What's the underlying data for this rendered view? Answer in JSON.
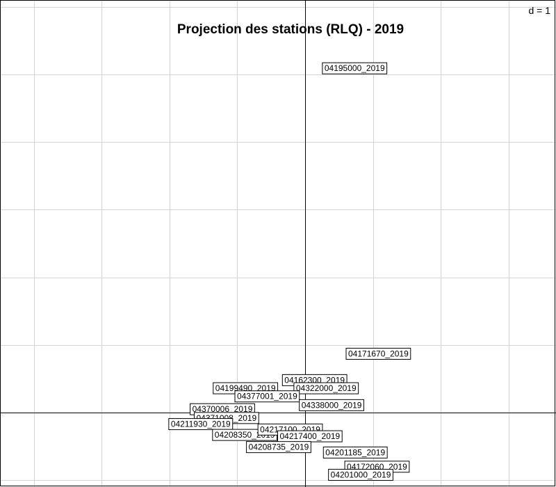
{
  "chart_data": {
    "type": "scatter",
    "title": "Projection des stations (RLQ) - 2019",
    "scale_label": "d = 1",
    "xlim": [
      -4.5,
      3.7
    ],
    "ylim": [
      -1.1,
      6.1
    ],
    "grid": true,
    "grid_step": 1,
    "colors": {
      "grid": "#d3d3d3",
      "axis": "#000000",
      "frame": "#000000",
      "label_box": "#ffffff",
      "label_border": "#000000",
      "text": "#000000"
    },
    "points": [
      {
        "label": "04162300_2019",
        "x": 0.14,
        "y": 0.48
      },
      {
        "label": "04199490_2019",
        "x": -0.88,
        "y": 0.36
      },
      {
        "label": "04322000_2019",
        "x": 0.31,
        "y": 0.36
      },
      {
        "label": "04171670_2019",
        "x": 1.08,
        "y": 0.87
      },
      {
        "label": "04195000_2019",
        "x": 0.73,
        "y": 5.09
      },
      {
        "label": "04377001_2019",
        "x": -0.56,
        "y": 0.24
      },
      {
        "label": "04338000_2019",
        "x": 0.39,
        "y": 0.11
      },
      {
        "label": "04370006_2019",
        "x": -1.22,
        "y": 0.05
      },
      {
        "label": "04371008_2019",
        "x": -1.16,
        "y": -0.08
      },
      {
        "label": "04211930_2019",
        "x": -1.54,
        "y": -0.17
      },
      {
        "label": "04208350_2019",
        "x": -0.89,
        "y": -0.33
      },
      {
        "label": "04217100_2019",
        "x": -0.22,
        "y": -0.25
      },
      {
        "label": "04217400_2019",
        "x": 0.07,
        "y": -0.35
      },
      {
        "label": "04208735_2019",
        "x": -0.39,
        "y": -0.51
      },
      {
        "label": "04201185_2019",
        "x": 0.74,
        "y": -0.59
      },
      {
        "label": "04172060_2019",
        "x": 1.06,
        "y": -0.8
      },
      {
        "label": "04201000_2019",
        "x": 0.82,
        "y": -0.92
      }
    ]
  }
}
